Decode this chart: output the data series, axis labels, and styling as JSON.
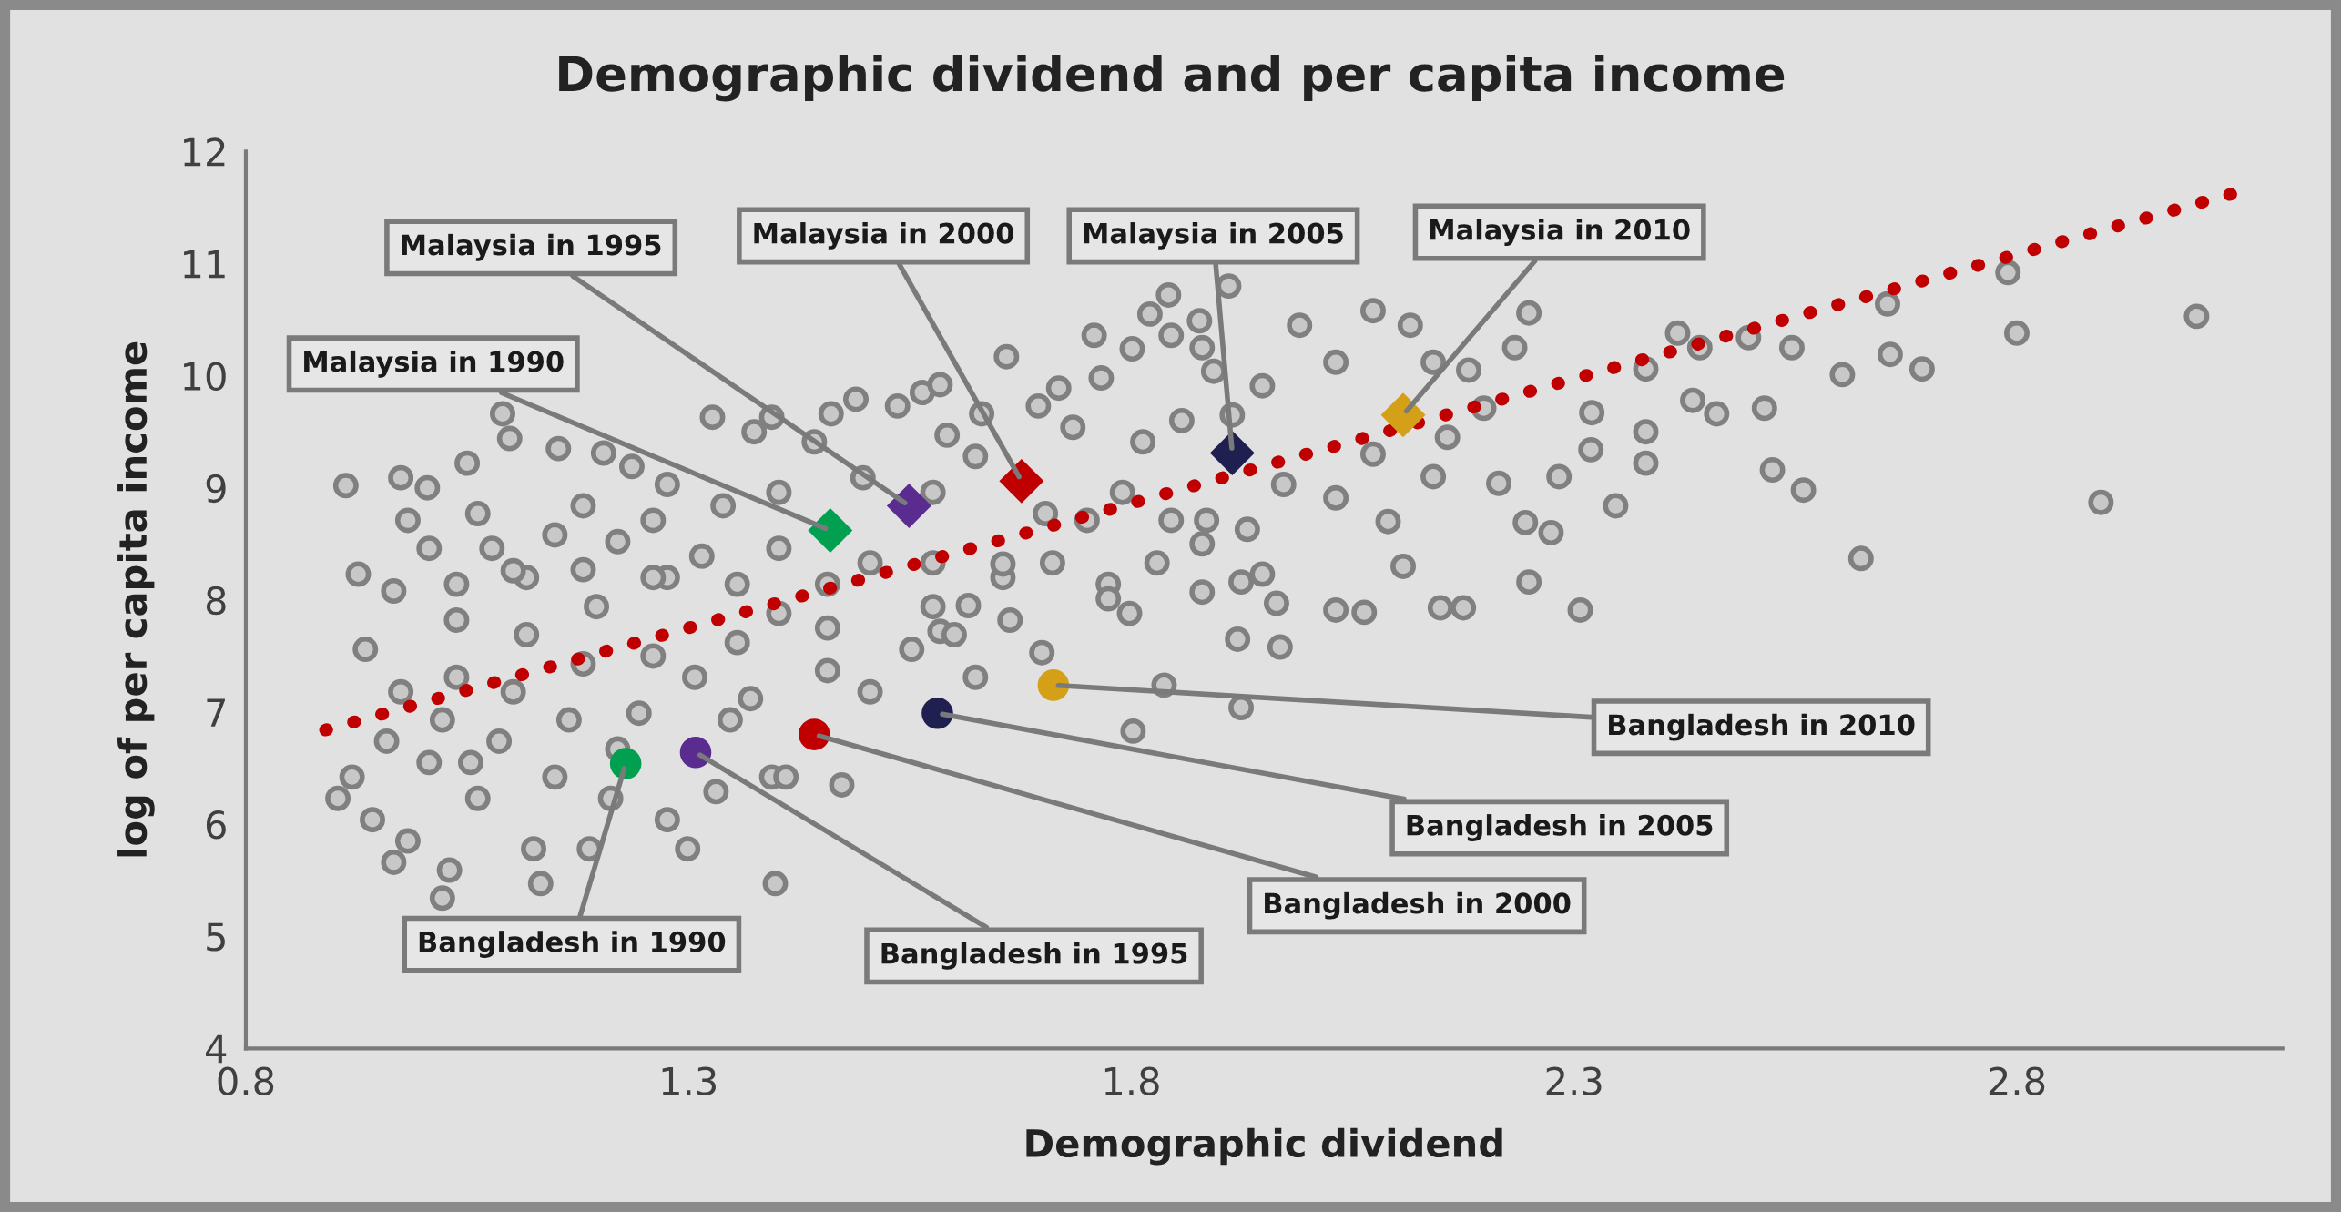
{
  "chart_data": {
    "type": "scatter",
    "title": "Demographic dividend and per capita income",
    "xlabel": "Demographic dividend",
    "ylabel": "log of per capita income",
    "xlim": [
      0.8,
      3.1
    ],
    "ylim": [
      4,
      12
    ],
    "xticks": [
      0.8,
      1.3,
      1.8,
      2.3,
      2.8
    ],
    "yticks": [
      4,
      5,
      6,
      7,
      8,
      9,
      10,
      11,
      12
    ],
    "grid": false,
    "legend": false,
    "series": [
      {
        "marker": "circle",
        "color": "#808080",
        "x": [
          3.003,
          2.895,
          2.624,
          2.79,
          2.8,
          2.654,
          2.657,
          2.693,
          2.603,
          2.559,
          2.524,
          2.546,
          2.497,
          2.515,
          2.461,
          2.442,
          2.417,
          2.434,
          2.381,
          2.381,
          2.381,
          2.347,
          2.32,
          2.319,
          2.283,
          2.274,
          2.245,
          2.249,
          2.307,
          2.175,
          2.149,
          2.063,
          2.031,
          2.107,
          1.924,
          1.92,
          1.968,
          1.964,
          1.88,
          1.91,
          1.842,
          0.913,
          0.975,
          1.005,
          1.05,
          1.098,
          1.09,
          1.153,
          1.204,
          1.236,
          1.276,
          1.327,
          1.374,
          1.394,
          1.442,
          1.461,
          1.489,
          1.536,
          1.564,
          1.584,
          1.592,
          1.624,
          1.631,
          1.659,
          1.695,
          1.718,
          1.758,
          1.766,
          1.801,
          1.821,
          1.845,
          1.877,
          1.893,
          1.857,
          1.813,
          1.734,
          1.703,
          1.75,
          1.79,
          1.845,
          1.885,
          1.829,
          1.774,
          1.711,
          1.655,
          1.616,
          1.576,
          1.505,
          1.457,
          1.402,
          1.355,
          1.315,
          1.276,
          1.22,
          1.181,
          1.149,
          1.117,
          1.078,
          1.038,
          1.007,
          0.967,
          0.927,
          0.983,
          1.062,
          1.181,
          1.26,
          1.339,
          1.402,
          1.497,
          1.576,
          0.935,
          0.904,
          0.92,
          0.943,
          0.967,
          0.983,
          0.959,
          0.975,
          1.007,
          1.022,
          1.038,
          1.03,
          1.022,
          1.038,
          1.062,
          1.086,
          1.102,
          1.117,
          1.133,
          1.125,
          1.149,
          1.165,
          1.181,
          1.196,
          1.188,
          1.212,
          1.244,
          1.26,
          1.276,
          1.299,
          1.307,
          1.331,
          1.347,
          1.37,
          1.394,
          1.398,
          1.41,
          1.457,
          1.473,
          1.505,
          1.552,
          1.584,
          1.6,
          1.624,
          1.663,
          1.699,
          1.802,
          1.837,
          1.924,
          1.798,
          1.774,
          1.576,
          1.655,
          1.102,
          1.26,
          1.402,
          1.457,
          1.355,
          1.22,
          1.054,
          1.88,
          1.948,
          1.99,
          2.031,
          2.073,
          2.115,
          2.141,
          2.181,
          2.233,
          2.249,
          2.198,
          2.157,
          2.073,
          2.031,
          1.972,
          1.931,
          1.88,
          1.948,
          2.09,
          2.141,
          2.215,
          1.914
        ],
        "values": [
          10.53,
          8.87,
          8.37,
          10.92,
          10.38,
          10.64,
          10.19,
          10.06,
          10.01,
          8.98,
          9.16,
          10.25,
          10.34,
          9.71,
          9.66,
          10.25,
          10.38,
          9.78,
          10.06,
          9.5,
          9.22,
          8.84,
          9.67,
          9.34,
          9.1,
          8.6,
          8.69,
          8.16,
          7.91,
          7.93,
          7.93,
          7.89,
          7.91,
          8.3,
          7.04,
          7.65,
          7.58,
          7.97,
          8.07,
          10.8,
          10.72,
          9.02,
          9.09,
          9.0,
          9.22,
          9.44,
          9.66,
          9.35,
          9.31,
          9.19,
          9.03,
          9.63,
          9.5,
          9.63,
          9.41,
          9.66,
          9.79,
          9.73,
          9.85,
          9.92,
          9.47,
          9.28,
          9.66,
          10.17,
          9.73,
          9.89,
          10.36,
          9.98,
          10.24,
          10.55,
          10.36,
          10.49,
          10.04,
          9.6,
          9.41,
          9.54,
          8.77,
          8.71,
          8.96,
          8.71,
          8.71,
          8.33,
          8.14,
          8.33,
          8.2,
          7.95,
          8.33,
          8.33,
          8.14,
          8.46,
          8.14,
          8.39,
          8.2,
          8.52,
          8.27,
          8.58,
          8.2,
          8.46,
          8.14,
          8.46,
          8.08,
          8.23,
          8.71,
          8.77,
          8.84,
          8.71,
          8.84,
          8.96,
          9.09,
          8.96,
          7.56,
          6.23,
          6.42,
          6.04,
          5.66,
          5.85,
          6.74,
          7.18,
          6.55,
          6.93,
          7.31,
          5.59,
          5.34,
          7.82,
          6.23,
          6.74,
          7.18,
          7.69,
          5.47,
          5.78,
          6.42,
          6.93,
          7.43,
          7.94,
          5.78,
          6.23,
          6.99,
          7.5,
          6.04,
          5.78,
          7.31,
          6.29,
          6.93,
          7.12,
          6.42,
          5.47,
          6.42,
          7.37,
          6.35,
          7.18,
          7.56,
          7.72,
          7.69,
          7.31,
          7.82,
          7.53,
          6.83,
          7.24,
          8.16,
          7.88,
          8.01,
          7.94,
          8.32,
          8.26,
          8.2,
          7.88,
          7.75,
          7.62,
          6.67,
          6.55,
          10.25,
          9.91,
          10.45,
          10.12,
          10.58,
          10.45,
          10.12,
          10.05,
          10.25,
          10.56,
          9.71,
          9.45,
          9.3,
          8.91,
          9.03,
          8.63,
          8.5,
          8.23,
          8.7,
          9.1,
          9.04,
          9.65
        ]
      },
      {
        "type": "line",
        "color": "#c00000",
        "line_style": "dotted",
        "x": [
          0.89,
          3.06
        ],
        "values": [
          6.84,
          11.66
        ]
      },
      {
        "type": "scatter",
        "marker": "diamond",
        "colors": [
          "#00a050",
          "#5b2c8f",
          "#c00000",
          "#1f2050",
          "#d4a017"
        ],
        "x": [
          1.46,
          1.549,
          1.676,
          1.914,
          2.107
        ],
        "values": [
          8.62,
          8.84,
          9.06,
          9.31,
          9.65
        ]
      },
      {
        "type": "scatter",
        "marker": "circle",
        "colors": [
          "#00a050",
          "#5b2c8f",
          "#c00000",
          "#1f2050",
          "#d4a017"
        ],
        "x": [
          1.229,
          1.308,
          1.442,
          1.581,
          1.712
        ],
        "values": [
          6.54,
          6.64,
          6.8,
          6.99,
          7.24
        ]
      }
    ],
    "annotations": [
      {
        "text": "Malaysia in 1990",
        "x": 1.46,
        "y": 8.62
      },
      {
        "text": "Malaysia in 1995",
        "x": 1.549,
        "y": 8.84
      },
      {
        "text": "Malaysia in 2000",
        "x": 1.676,
        "y": 9.06
      },
      {
        "text": "Malaysia in 2005",
        "x": 1.914,
        "y": 9.31
      },
      {
        "text": "Malaysia in 2010",
        "x": 2.107,
        "y": 9.65
      },
      {
        "text": "Bangladesh in 1990",
        "x": 1.229,
        "y": 6.54
      },
      {
        "text": "Bangladesh in 1995",
        "x": 1.308,
        "y": 6.64
      },
      {
        "text": "Bangladesh in 2000",
        "x": 1.442,
        "y": 6.8
      },
      {
        "text": "Bangladesh in 2005",
        "x": 1.581,
        "y": 6.99
      },
      {
        "text": "Bangladesh in 2010",
        "x": 1.712,
        "y": 7.24
      }
    ]
  }
}
